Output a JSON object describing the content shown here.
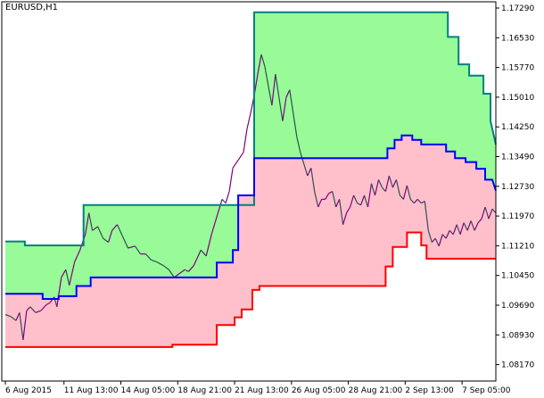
{
  "window": {
    "symbol": "EURUSD,H1"
  },
  "colors": {
    "background": "#ffffff",
    "frame": "#000000",
    "upper_fill": "#98fb98",
    "lower_fill": "#ffc0cb",
    "upper_line": "#008080",
    "middle_line": "#0000ff",
    "lower_line": "#ff0000",
    "price_up": "#800080",
    "price_down": "#2f4f4f"
  },
  "chart_data": {
    "type": "line",
    "xlabel": "",
    "ylabel": "",
    "ylim": [
      1.0775,
      1.1745
    ],
    "y_ticks": [
      "1.17290",
      "1.16530",
      "1.15770",
      "1.15010",
      "1.14250",
      "1.13490",
      "1.12730",
      "1.11970",
      "1.11210",
      "1.10450",
      "1.09690",
      "1.08930",
      "1.08170"
    ],
    "x_tick_labels": [
      "6 Aug 2015",
      "11 Aug 13:00",
      "14 Aug 05:00",
      "18 Aug 21:00",
      "21 Aug 13:00",
      "26 Aug 05:00",
      "28 Aug 21:00",
      "2 Sep 13:00",
      "7 Sep 05:00"
    ],
    "x_range": [
      0,
      552
    ],
    "x_tick_positions": [
      0,
      66,
      130,
      194,
      258,
      322,
      386,
      450,
      514
    ],
    "series": [
      {
        "role": "upper",
        "values": [
          [
            0,
            1.1132
          ],
          [
            22,
            1.1132
          ],
          [
            22,
            1.1122
          ],
          [
            88,
            1.1122
          ],
          [
            88,
            1.1225
          ],
          [
            280,
            1.1225
          ],
          [
            280,
            1.1718
          ],
          [
            498,
            1.1718
          ],
          [
            498,
            1.1655
          ],
          [
            510,
            1.1655
          ],
          [
            510,
            1.1585
          ],
          [
            522,
            1.1585
          ],
          [
            522,
            1.1556
          ],
          [
            538,
            1.1556
          ],
          [
            538,
            1.151
          ],
          [
            546,
            1.151
          ],
          [
            546,
            1.144
          ],
          [
            552,
            1.138
          ]
        ]
      },
      {
        "role": "middle",
        "values": [
          [
            0,
            1.0998
          ],
          [
            42,
            1.0998
          ],
          [
            42,
            1.0985
          ],
          [
            60,
            1.0985
          ],
          [
            60,
            1.0992
          ],
          [
            80,
            1.0992
          ],
          [
            80,
            1.1018
          ],
          [
            96,
            1.1018
          ],
          [
            96,
            1.104
          ],
          [
            238,
            1.104
          ],
          [
            238,
            1.1078
          ],
          [
            256,
            1.1078
          ],
          [
            256,
            1.111
          ],
          [
            262,
            1.111
          ],
          [
            262,
            1.125
          ],
          [
            280,
            1.125
          ],
          [
            280,
            1.1345
          ],
          [
            430,
            1.1345
          ],
          [
            430,
            1.137
          ],
          [
            438,
            1.137
          ],
          [
            438,
            1.1392
          ],
          [
            446,
            1.1392
          ],
          [
            446,
            1.1403
          ],
          [
            458,
            1.1403
          ],
          [
            458,
            1.1392
          ],
          [
            468,
            1.1392
          ],
          [
            468,
            1.138
          ],
          [
            496,
            1.138
          ],
          [
            496,
            1.1362
          ],
          [
            506,
            1.1362
          ],
          [
            506,
            1.1345
          ],
          [
            518,
            1.1345
          ],
          [
            518,
            1.1335
          ],
          [
            530,
            1.1335
          ],
          [
            530,
            1.1318
          ],
          [
            540,
            1.1318
          ],
          [
            540,
            1.129
          ],
          [
            548,
            1.129
          ],
          [
            552,
            1.1262
          ]
        ]
      },
      {
        "role": "lower",
        "values": [
          [
            0,
            1.0862
          ],
          [
            188,
            1.0862
          ],
          [
            188,
            1.0868
          ],
          [
            238,
            1.0868
          ],
          [
            238,
            1.0918
          ],
          [
            258,
            1.0918
          ],
          [
            258,
            1.0938
          ],
          [
            266,
            1.0938
          ],
          [
            266,
            1.0958
          ],
          [
            278,
            1.0958
          ],
          [
            278,
            1.1008
          ],
          [
            286,
            1.1008
          ],
          [
            286,
            1.1018
          ],
          [
            428,
            1.1018
          ],
          [
            428,
            1.1068
          ],
          [
            436,
            1.1068
          ],
          [
            436,
            1.1118
          ],
          [
            452,
            1.1118
          ],
          [
            452,
            1.1155
          ],
          [
            468,
            1.1155
          ],
          [
            468,
            1.1122
          ],
          [
            474,
            1.1122
          ],
          [
            474,
            1.1088
          ],
          [
            552,
            1.1088
          ]
        ]
      },
      {
        "role": "price",
        "values": [
          [
            0,
            1.0945
          ],
          [
            6,
            1.094
          ],
          [
            12,
            1.093
          ],
          [
            16,
            1.095
          ],
          [
            20,
            1.088
          ],
          [
            24,
            1.0955
          ],
          [
            28,
            1.0965
          ],
          [
            34,
            1.095
          ],
          [
            40,
            1.0955
          ],
          [
            46,
            1.097
          ],
          [
            50,
            1.0975
          ],
          [
            55,
            1.099
          ],
          [
            58,
            1.0965
          ],
          [
            63,
            1.104
          ],
          [
            68,
            1.106
          ],
          [
            72,
            1.102
          ],
          [
            78,
            1.108
          ],
          [
            84,
            1.111
          ],
          [
            90,
            1.115
          ],
          [
            94,
            1.1205
          ],
          [
            98,
            1.116
          ],
          [
            104,
            1.117
          ],
          [
            110,
            1.114
          ],
          [
            116,
            1.113
          ],
          [
            120,
            1.116
          ],
          [
            126,
            1.1175
          ],
          [
            132,
            1.1145
          ],
          [
            138,
            1.1115
          ],
          [
            146,
            1.112
          ],
          [
            152,
            1.11
          ],
          [
            158,
            1.11
          ],
          [
            164,
            1.1085
          ],
          [
            170,
            1.108
          ],
          [
            178,
            1.107
          ],
          [
            184,
            1.106
          ],
          [
            190,
            1.104
          ],
          [
            196,
            1.105
          ],
          [
            202,
            1.106
          ],
          [
            206,
            1.1055
          ],
          [
            212,
            1.107
          ],
          [
            216,
            1.109
          ],
          [
            220,
            1.111
          ],
          [
            226,
            1.1095
          ],
          [
            232,
            1.115
          ],
          [
            236,
            1.118
          ],
          [
            240,
            1.121
          ],
          [
            244,
            1.124
          ],
          [
            248,
            1.123
          ],
          [
            252,
            1.126
          ],
          [
            256,
            1.132
          ],
          [
            262,
            1.134
          ],
          [
            268,
            1.136
          ],
          [
            272,
            1.142
          ],
          [
            276,
            1.146
          ],
          [
            280,
            1.1505
          ],
          [
            284,
            1.156
          ],
          [
            288,
            1.161
          ],
          [
            292,
            1.158
          ],
          [
            296,
            1.153
          ],
          [
            300,
            1.148
          ],
          [
            304,
            1.156
          ],
          [
            308,
            1.15
          ],
          [
            312,
            1.144
          ],
          [
            316,
            1.15
          ],
          [
            320,
            1.152
          ],
          [
            324,
            1.146
          ],
          [
            328,
            1.14
          ],
          [
            332,
            1.136
          ],
          [
            336,
            1.133
          ],
          [
            340,
            1.13
          ],
          [
            344,
            1.132
          ],
          [
            348,
            1.126
          ],
          [
            352,
            1.122
          ],
          [
            356,
            1.124
          ],
          [
            360,
            1.124
          ],
          [
            364,
            1.1255
          ],
          [
            368,
            1.126
          ],
          [
            372,
            1.122
          ],
          [
            376,
            1.124
          ],
          [
            380,
            1.1175
          ],
          [
            384,
            1.1205
          ],
          [
            388,
            1.122
          ],
          [
            392,
            1.125
          ],
          [
            396,
            1.123
          ],
          [
            400,
            1.1225
          ],
          [
            404,
            1.125
          ],
          [
            408,
            1.122
          ],
          [
            412,
            1.128
          ],
          [
            416,
            1.125
          ],
          [
            420,
            1.129
          ],
          [
            424,
            1.127
          ],
          [
            428,
            1.126
          ],
          [
            432,
            1.13
          ],
          [
            436,
            1.127
          ],
          [
            440,
            1.129
          ],
          [
            444,
            1.125
          ],
          [
            448,
            1.124
          ],
          [
            452,
            1.1275
          ],
          [
            456,
            1.124
          ],
          [
            460,
            1.123
          ],
          [
            464,
            1.124
          ],
          [
            468,
            1.123
          ],
          [
            472,
            1.1235
          ],
          [
            476,
            1.116
          ],
          [
            480,
            1.113
          ],
          [
            484,
            1.114
          ],
          [
            488,
            1.112
          ],
          [
            492,
            1.115
          ],
          [
            496,
            1.114
          ],
          [
            500,
            1.116
          ],
          [
            504,
            1.115
          ],
          [
            508,
            1.1175
          ],
          [
            512,
            1.115
          ],
          [
            516,
            1.118
          ],
          [
            520,
            1.116
          ],
          [
            524,
            1.1185
          ],
          [
            528,
            1.116
          ],
          [
            532,
            1.118
          ],
          [
            536,
            1.119
          ],
          [
            540,
            1.122
          ],
          [
            544,
            1.119
          ],
          [
            548,
            1.1215
          ],
          [
            552,
            1.1205
          ]
        ]
      }
    ]
  }
}
